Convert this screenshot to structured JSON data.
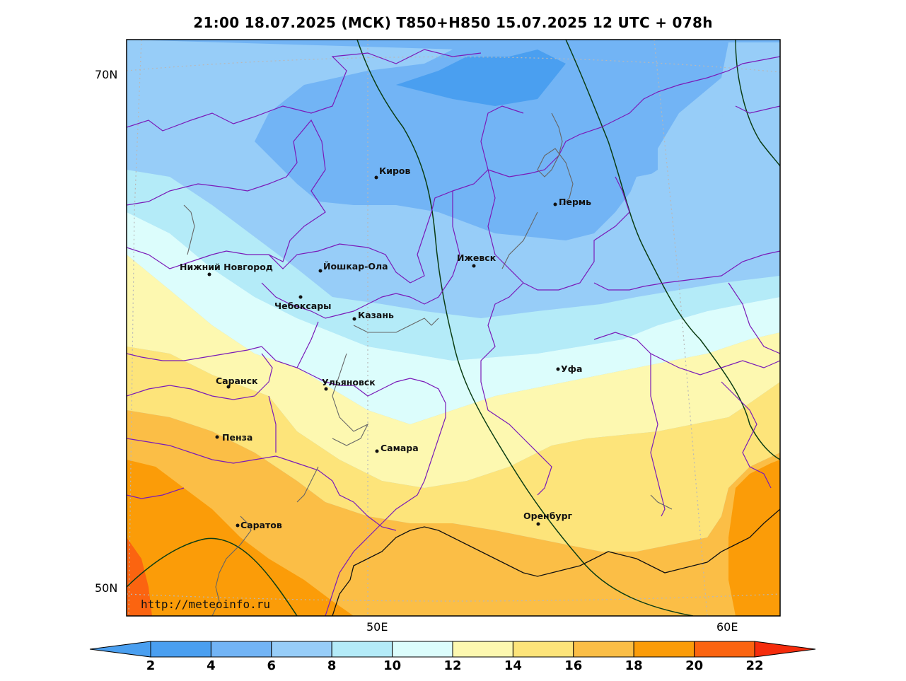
{
  "title": "21:00 18.07.2025 (МСК) T850+H850 15.07.2025 12 UTC + 078h",
  "axes": {
    "lat_labels": [
      "70N",
      "50N"
    ],
    "lon_labels": [
      "50E",
      "60E"
    ]
  },
  "watermark": "http://meteoinfo.ru",
  "cities": [
    {
      "name": "Киров"
    },
    {
      "name": "Пермь"
    },
    {
      "name": "Нижний Новгород"
    },
    {
      "name": "Йошкар-Ола"
    },
    {
      "name": "Ижевск"
    },
    {
      "name": "Чебоксары"
    },
    {
      "name": "Казань"
    },
    {
      "name": "Уфа"
    },
    {
      "name": "Саранск"
    },
    {
      "name": "Ульяновск"
    },
    {
      "name": "Пенза"
    },
    {
      "name": "Самара"
    },
    {
      "name": "Оренбург"
    },
    {
      "name": "Саратов"
    }
  ],
  "colorbar": {
    "ticks": [
      "2",
      "4",
      "6",
      "8",
      "10",
      "12",
      "14",
      "16",
      "18",
      "20",
      "22"
    ],
    "colors": [
      "#4a9ff0",
      "#72b4f5",
      "#97cdf8",
      "#b4ebf8",
      "#dcfdfc",
      "#fdf8b0",
      "#fde47a",
      "#fbbe46",
      "#fb9c08",
      "#fb6410",
      "#f53414",
      "#f52c0c"
    ],
    "under_color": "#4a9ff0",
    "over_color": "#f52c0c"
  }
}
